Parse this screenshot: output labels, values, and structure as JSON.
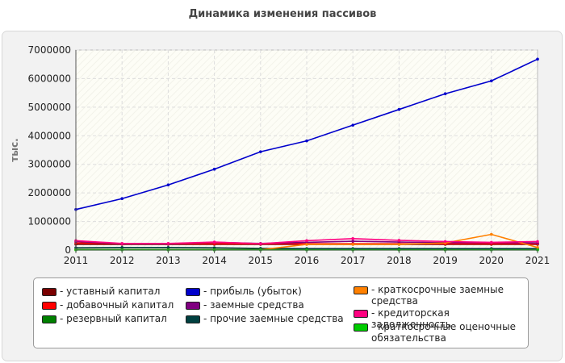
{
  "chart_data": {
    "type": "line",
    "title": "Динамика изменения пассивов",
    "ylabel": "тыс.",
    "xlabel": "",
    "categories": [
      "2011",
      "2012",
      "2013",
      "2014",
      "2015",
      "2016",
      "2017",
      "2018",
      "2019",
      "2020",
      "2021"
    ],
    "ylim": [
      0,
      7000000
    ],
    "yticks": [
      "0",
      "1000000",
      "2000000",
      "3000000",
      "4000000",
      "5000000",
      "6000000",
      "7000000"
    ],
    "grid": true,
    "legend_position": "bottom",
    "series": [
      {
        "name": "- уставный капитал",
        "color": "#7a0000",
        "values": [
          200000,
          200000,
          200000,
          200000,
          200000,
          200000,
          200000,
          200000,
          200000,
          200000,
          200000
        ]
      },
      {
        "name": "- добавочный капитал",
        "color": "#ff0000",
        "values": [
          250000,
          220000,
          220000,
          220000,
          220000,
          220000,
          220000,
          220000,
          220000,
          220000,
          220000
        ]
      },
      {
        "name": "- резервный капитал",
        "color": "#008000",
        "values": [
          20000,
          20000,
          20000,
          20000,
          20000,
          20000,
          20000,
          20000,
          20000,
          20000,
          20000
        ]
      },
      {
        "name": "- прибыль (убыток)",
        "color": "#0000cc",
        "values": [
          1420000,
          1800000,
          2280000,
          2830000,
          3440000,
          3820000,
          4370000,
          4920000,
          5470000,
          5920000,
          6680000
        ]
      },
      {
        "name": "- заемные средства",
        "color": "#800080",
        "values": [
          300000,
          220000,
          220000,
          270000,
          230000,
          270000,
          310000,
          280000,
          260000,
          260000,
          250000
        ]
      },
      {
        "name": "- прочие заемные средства",
        "color": "#004040",
        "values": [
          80000,
          90000,
          90000,
          80000,
          60000,
          50000,
          50000,
          50000,
          50000,
          50000,
          50000
        ]
      },
      {
        "name": "- краткосрочные заемные средства",
        "color": "#ff8000",
        "values": [
          10000,
          10000,
          10000,
          10000,
          10000,
          200000,
          200000,
          200000,
          250000,
          550000,
          90000
        ]
      },
      {
        "name": "- кредиторская задолженность",
        "color": "#ff0080",
        "values": [
          330000,
          230000,
          230000,
          280000,
          220000,
          330000,
          400000,
          340000,
          300000,
          270000,
          300000
        ]
      },
      {
        "name": "- краткосрочные оценочные обязательства",
        "color": "#00cc00",
        "values": [
          5000,
          5000,
          5000,
          5000,
          5000,
          5000,
          5000,
          5000,
          5000,
          5000,
          5000
        ]
      }
    ]
  }
}
